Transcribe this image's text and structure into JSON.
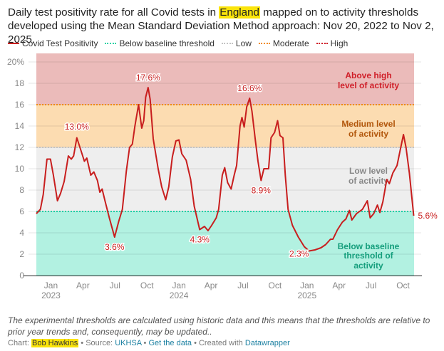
{
  "title": {
    "before": "Daily test positivity rate for all Covid tests in ",
    "highlight": "England",
    "after": " mapped on to activity thresholds developed using the Mean Standard Deviation Method approach: Nov 20, 2022 to Nov 2, 2025."
  },
  "legend": [
    {
      "label": "Covid Test Positivity",
      "color": "#c81e1e",
      "style": "solid"
    },
    {
      "label": "Below baseline threshold",
      "color": "#18d2a5",
      "style": "dotted"
    },
    {
      "label": "Low",
      "color": "#c3c3c3",
      "style": "dotted"
    },
    {
      "label": "Moderate",
      "color": "#f28c00",
      "style": "dotted"
    },
    {
      "label": "High",
      "color": "#d0202a",
      "style": "dotted"
    }
  ],
  "notes": "The experimental thresholds are calculated using historic data and this means that the thresholds are relative to prior year trends and, consequently, may be updated..",
  "byline": {
    "chart_prefix": "Chart:",
    "author": "Bob Hawkins",
    "source_prefix": "• Source:",
    "source": "UKHSA",
    "sep": "•",
    "get_data": "Get the data",
    "created_prefix": "• Created with",
    "tool": "Datawrapper"
  },
  "chart_data": {
    "type": "line",
    "title": "Daily test positivity rate for all Covid tests in England",
    "xlabel": "",
    "ylabel": "",
    "xlim": [
      2022.886,
      2025.836
    ],
    "ylim": [
      0,
      20.8
    ],
    "grid": true,
    "y_ticks": [
      {
        "value": 0,
        "label": "0"
      },
      {
        "value": 2,
        "label": "2"
      },
      {
        "value": 4,
        "label": "4"
      },
      {
        "value": 6,
        "label": "6"
      },
      {
        "value": 8,
        "label": "8"
      },
      {
        "value": 10,
        "label": "10"
      },
      {
        "value": 12,
        "label": "12"
      },
      {
        "value": 14,
        "label": "14"
      },
      {
        "value": 16,
        "label": "16"
      },
      {
        "value": 18,
        "label": "18"
      },
      {
        "value": 20,
        "label": "20%"
      }
    ],
    "x_ticks": [
      {
        "value": 2023.0,
        "label": "Jan",
        "year": "2023"
      },
      {
        "value": 2023.25,
        "label": "Apr"
      },
      {
        "value": 2023.5,
        "label": "Jul"
      },
      {
        "value": 2023.75,
        "label": "Oct"
      },
      {
        "value": 2024.0,
        "label": "Jan",
        "year": "2024"
      },
      {
        "value": 2024.25,
        "label": "Apr"
      },
      {
        "value": 2024.5,
        "label": "Jul"
      },
      {
        "value": 2024.75,
        "label": "Oct"
      },
      {
        "value": 2025.0,
        "label": "Jan",
        "year": "2025"
      },
      {
        "value": 2025.25,
        "label": "Apr"
      },
      {
        "value": 2025.5,
        "label": "Jul"
      },
      {
        "value": 2025.75,
        "label": "Oct"
      }
    ],
    "zones": [
      {
        "from": 0,
        "to": 6,
        "color": "#b2f1e1",
        "label": "Below baseline threshold of activity",
        "lines": [
          "Below baseline",
          "threshold of",
          "activity"
        ],
        "text_color": "#159e7c"
      },
      {
        "from": 6,
        "to": 12,
        "color": "#eeeeee",
        "label": "Low level of activity",
        "lines": [
          "Low level",
          "of activity"
        ],
        "text_color": "#888888"
      },
      {
        "from": 12,
        "to": 16,
        "color": "#fcdcb1",
        "label": "Medium level of activity",
        "lines": [
          "Medium level",
          "of activity"
        ],
        "text_color": "#b2560b"
      },
      {
        "from": 16,
        "to": 20.8,
        "color": "#ebbbba",
        "label": "Above high level of activity",
        "lines": [
          "Above high",
          "level of activity"
        ],
        "text_color": "#d0202a"
      }
    ],
    "thresholds": [
      {
        "name": "Below baseline threshold",
        "value": 6,
        "color": "#18d2a5"
      },
      {
        "name": "Low",
        "value": 12,
        "color": "#c3c3c3"
      },
      {
        "name": "Moderate",
        "value": 16,
        "color": "#f28c00"
      }
    ],
    "series": [
      {
        "name": "Covid Test Positivity",
        "color": "#c81e1e",
        "points": [
          [
            2022.886,
            5.8
          ],
          [
            2022.918,
            6.2
          ],
          [
            2022.94,
            7.6
          ],
          [
            2022.969,
            10.9
          ],
          [
            2022.996,
            10.9
          ],
          [
            2023.019,
            9.4
          ],
          [
            2023.051,
            7.0
          ],
          [
            2023.075,
            7.7
          ],
          [
            2023.103,
            8.8
          ],
          [
            2023.136,
            11.2
          ],
          [
            2023.159,
            10.9
          ],
          [
            2023.177,
            11.2
          ],
          [
            2023.202,
            12.9
          ],
          [
            2023.237,
            11.6
          ],
          [
            2023.261,
            10.7
          ],
          [
            2023.28,
            11.0
          ],
          [
            2023.311,
            9.4
          ],
          [
            2023.335,
            9.7
          ],
          [
            2023.363,
            8.9
          ],
          [
            2023.382,
            7.8
          ],
          [
            2023.4,
            8.1
          ],
          [
            2023.422,
            7.0
          ],
          [
            2023.456,
            5.4
          ],
          [
            2023.497,
            3.6
          ],
          [
            2023.53,
            5.1
          ],
          [
            2023.558,
            6.2
          ],
          [
            2023.589,
            9.8
          ],
          [
            2023.614,
            12.0
          ],
          [
            2023.636,
            12.3
          ],
          [
            2023.656,
            14.0
          ],
          [
            2023.684,
            16.0
          ],
          [
            2023.709,
            13.8
          ],
          [
            2023.725,
            14.5
          ],
          [
            2023.74,
            16.7
          ],
          [
            2023.759,
            17.6
          ],
          [
            2023.775,
            16.5
          ],
          [
            2023.799,
            12.8
          ],
          [
            2023.837,
            10.0
          ],
          [
            2023.865,
            8.3
          ],
          [
            2023.896,
            7.1
          ],
          [
            2023.92,
            8.3
          ],
          [
            2023.948,
            11.1
          ],
          [
            2023.976,
            12.6
          ],
          [
            2024.0,
            12.7
          ],
          [
            2024.022,
            11.4
          ],
          [
            2024.056,
            10.8
          ],
          [
            2024.091,
            9.0
          ],
          [
            2024.119,
            6.5
          ],
          [
            2024.162,
            4.3
          ],
          [
            2024.199,
            4.6
          ],
          [
            2024.227,
            4.2
          ],
          [
            2024.255,
            4.7
          ],
          [
            2024.291,
            5.4
          ],
          [
            2024.31,
            6.2
          ],
          [
            2024.338,
            9.4
          ],
          [
            2024.357,
            10.1
          ],
          [
            2024.38,
            8.7
          ],
          [
            2024.407,
            8.1
          ],
          [
            2024.431,
            9.4
          ],
          [
            2024.45,
            10.3
          ],
          [
            2024.477,
            14.0
          ],
          [
            2024.492,
            14.8
          ],
          [
            2024.509,
            13.9
          ],
          [
            2024.529,
            15.8
          ],
          [
            2024.552,
            16.6
          ],
          [
            2024.57,
            15.4
          ],
          [
            2024.598,
            12.5
          ],
          [
            2024.617,
            10.7
          ],
          [
            2024.641,
            8.9
          ],
          [
            2024.663,
            10.0
          ],
          [
            2024.7,
            10.0
          ],
          [
            2024.719,
            12.9
          ],
          [
            2024.747,
            13.4
          ],
          [
            2024.77,
            14.5
          ],
          [
            2024.789,
            13.1
          ],
          [
            2024.812,
            12.9
          ],
          [
            2024.83,
            9.4
          ],
          [
            2024.852,
            6.2
          ],
          [
            2024.886,
            4.7
          ],
          [
            2024.932,
            3.6
          ],
          [
            2024.979,
            2.7
          ],
          [
            2025.016,
            2.3
          ],
          [
            2025.062,
            2.4
          ],
          [
            2025.109,
            2.6
          ],
          [
            2025.146,
            2.9
          ],
          [
            2025.183,
            3.4
          ],
          [
            2025.202,
            3.4
          ],
          [
            2025.238,
            4.3
          ],
          [
            2025.276,
            5.0
          ],
          [
            2025.304,
            5.3
          ],
          [
            2025.331,
            6.1
          ],
          [
            2025.35,
            5.2
          ],
          [
            2025.387,
            5.8
          ],
          [
            2025.433,
            6.2
          ],
          [
            2025.471,
            7.0
          ],
          [
            2025.493,
            5.4
          ],
          [
            2025.521,
            5.8
          ],
          [
            2025.55,
            6.6
          ],
          [
            2025.569,
            5.9
          ],
          [
            2025.592,
            6.9
          ],
          [
            2025.623,
            9.0
          ],
          [
            2025.643,
            8.6
          ],
          [
            2025.67,
            9.6
          ],
          [
            2025.703,
            10.3
          ],
          [
            2025.725,
            11.6
          ],
          [
            2025.753,
            13.2
          ],
          [
            2025.773,
            12.0
          ],
          [
            2025.799,
            9.6
          ],
          [
            2025.833,
            5.6
          ]
        ]
      }
    ],
    "annotations": [
      {
        "x": 2023.202,
        "value": 13.0,
        "label": "13.0%",
        "position": "above"
      },
      {
        "x": 2023.497,
        "value": 3.6,
        "label": "3.6%",
        "position": "below"
      },
      {
        "x": 2023.759,
        "value": 17.6,
        "label": "17.6%",
        "position": "above"
      },
      {
        "x": 2024.162,
        "value": 4.3,
        "label": "4.3%",
        "position": "below"
      },
      {
        "x": 2024.552,
        "value": 16.6,
        "label": "16.6%",
        "position": "above"
      },
      {
        "x": 2024.641,
        "value": 8.9,
        "label": "8.9%",
        "position": "below"
      },
      {
        "x": 2025.016,
        "value": 2.3,
        "label": "2.3%",
        "position": "below-left"
      },
      {
        "x": 2025.833,
        "value": 5.6,
        "label": "5.6%",
        "position": "right"
      }
    ]
  }
}
